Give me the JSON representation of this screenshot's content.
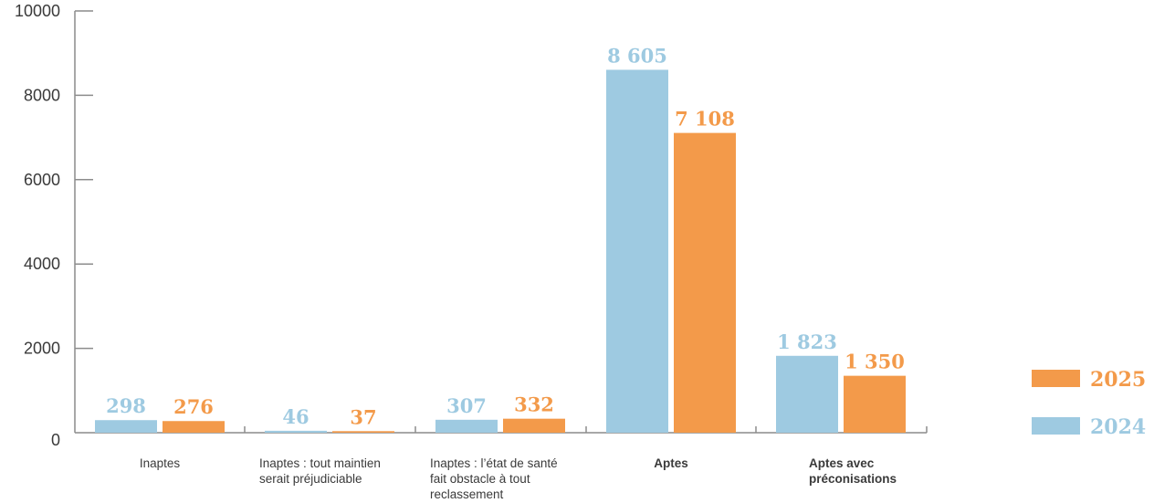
{
  "chart_data": {
    "type": "bar",
    "categories": [
      "Inaptes",
      "Inaptes : tout maintien serait préjudiciable",
      "Inaptes : l’état de santé fait obstacle à tout reclassement",
      "Aptes",
      "Aptes avec préconisations"
    ],
    "category_lines": [
      [
        "Inaptes"
      ],
      [
        "Inaptes : tout maintien",
        "serait préjudiciable"
      ],
      [
        "Inaptes : l’état de santé",
        "fait obstacle à tout",
        "reclassement"
      ],
      [
        "Aptes"
      ],
      [
        "Aptes avec",
        "préconisations"
      ]
    ],
    "category_bold": [
      false,
      false,
      false,
      true,
      true
    ],
    "series": [
      {
        "name": "2024",
        "color": "#9ecae1",
        "values": [
          298,
          46,
          307,
          8605,
          1823
        ],
        "labels": [
          "298",
          "46",
          "307",
          "8 605",
          "1 823"
        ]
      },
      {
        "name": "2025",
        "color": "#f39a4a",
        "values": [
          276,
          37,
          332,
          7108,
          1350
        ],
        "labels": [
          "276",
          "37",
          "332",
          "7 108",
          "1 350"
        ]
      }
    ],
    "ylim": [
      0,
      10000
    ],
    "yticks": [
      "0",
      "2000",
      "4000",
      "6000",
      "8000",
      "10000"
    ],
    "title": "",
    "xlabel": "",
    "ylabel": "",
    "grid": false,
    "legend_position": "bottom-right"
  }
}
